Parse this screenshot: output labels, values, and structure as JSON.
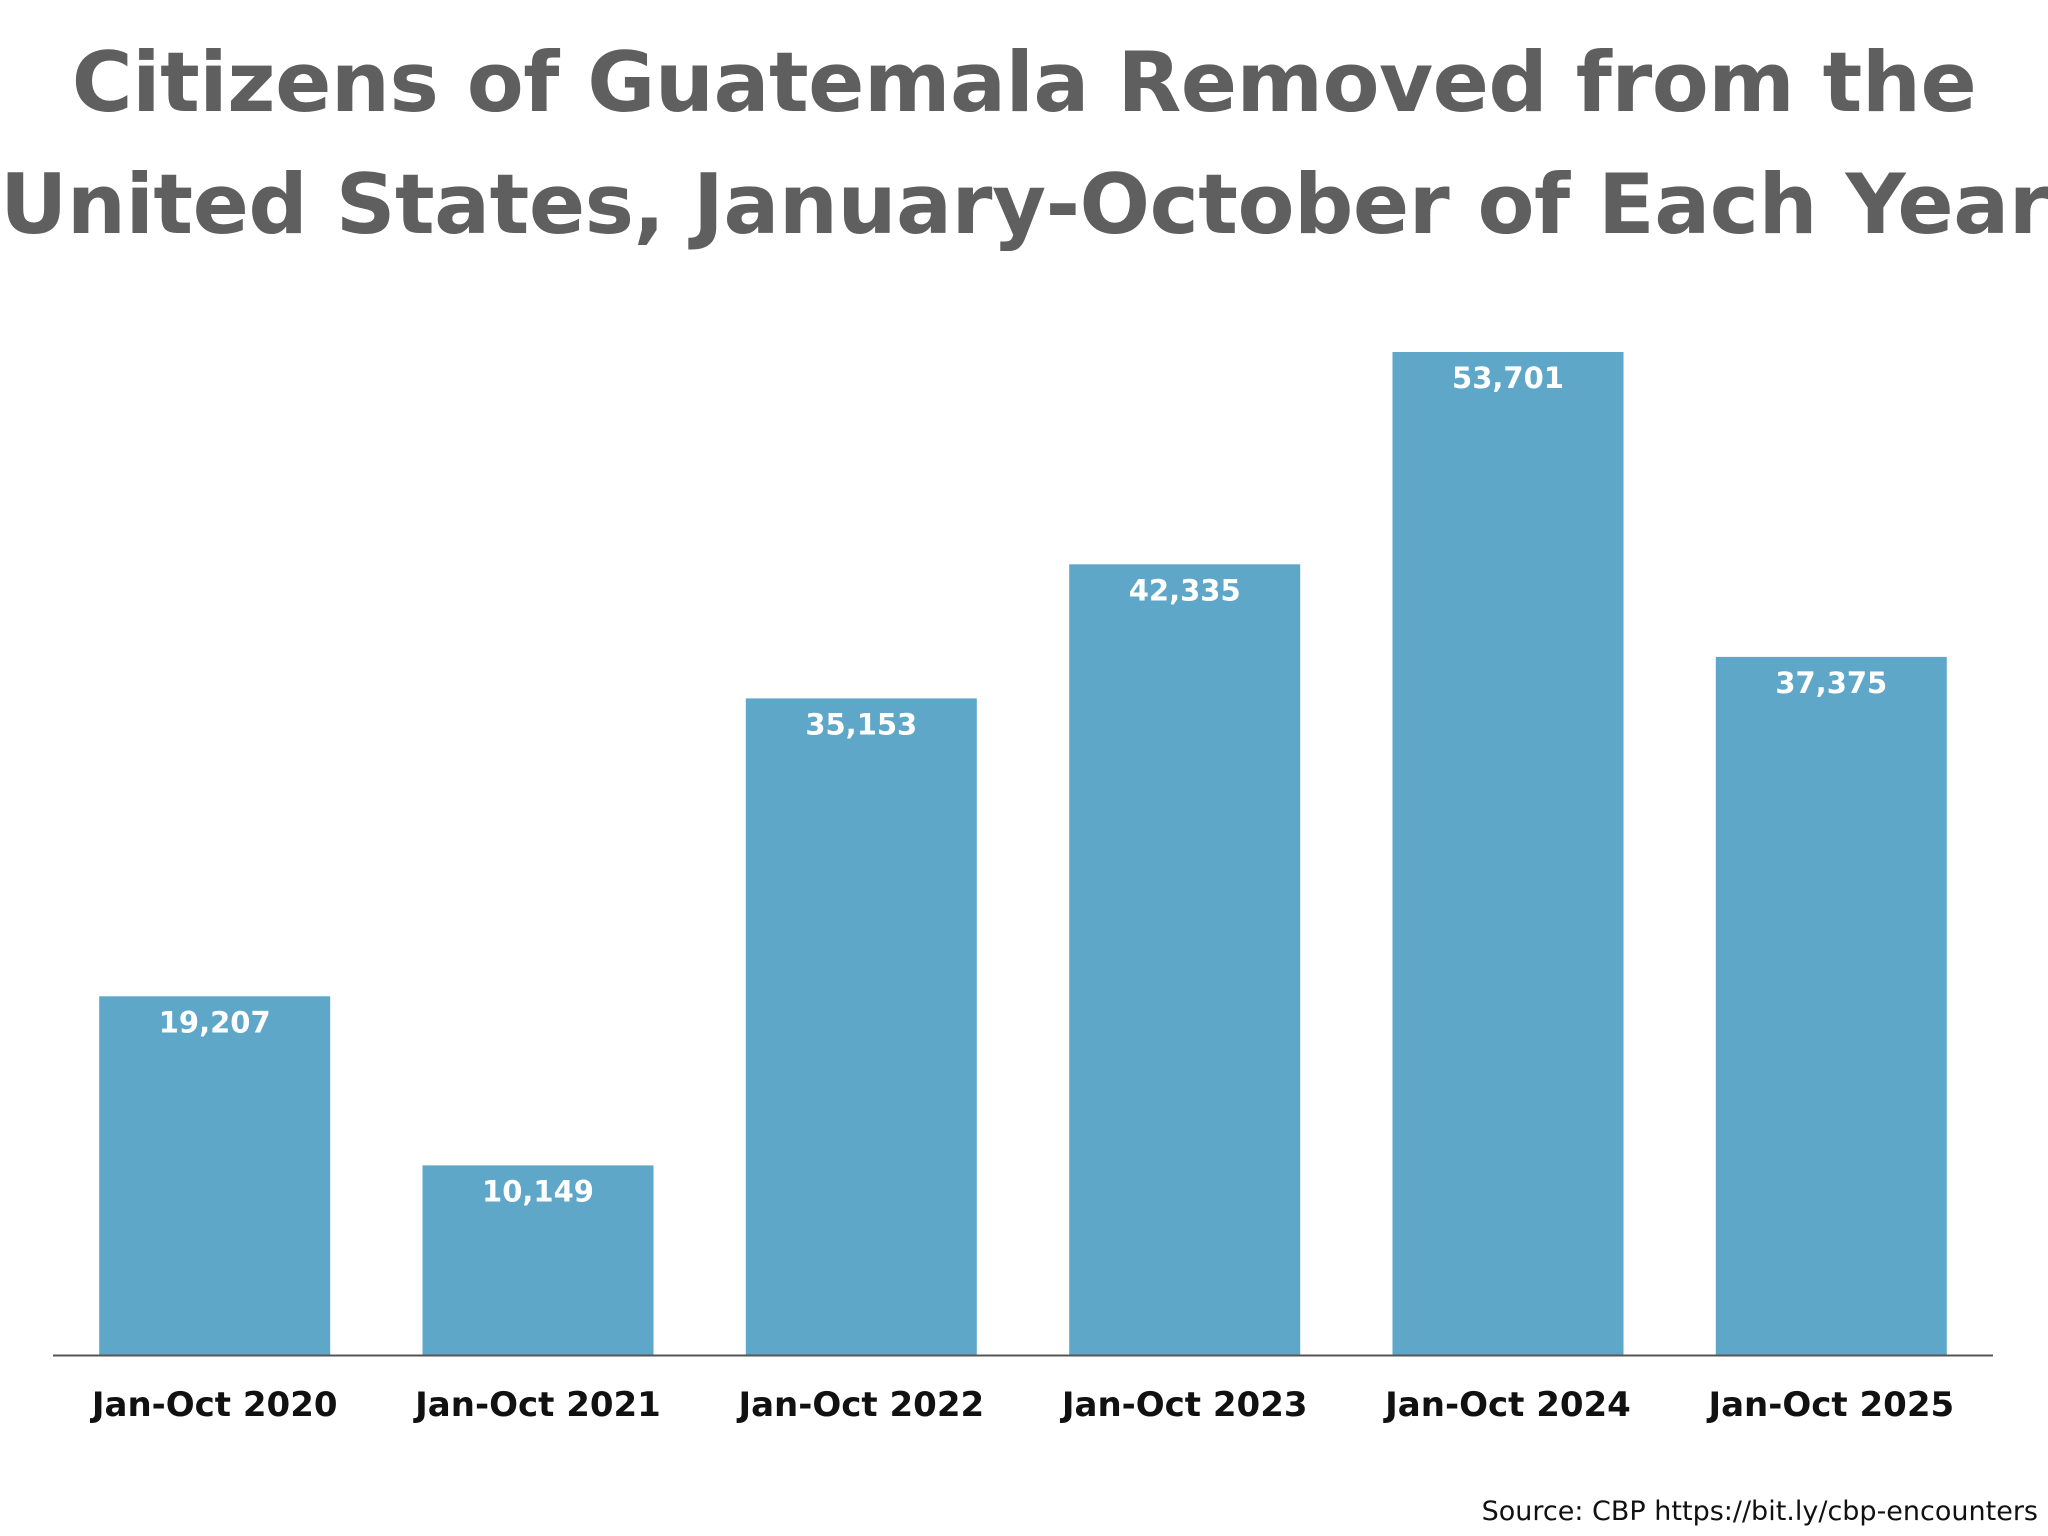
{
  "chart_data": {
    "type": "bar",
    "title_lines": [
      "Citizens of Guatemala Removed from the",
      "United States, January-October of Each Year"
    ],
    "categories": [
      "Jan-Oct 2020",
      "Jan-Oct 2021",
      "Jan-Oct 2022",
      "Jan-Oct 2023",
      "Jan-Oct 2024",
      "Jan-Oct 2025"
    ],
    "values": [
      19207,
      10149,
      35153,
      42335,
      53701,
      37375
    ],
    "value_labels": [
      "19,207",
      "10,149",
      "35,153",
      "42,335",
      "53,701",
      "37,375"
    ],
    "xlabel": "",
    "ylabel": "",
    "ylim": [
      0,
      60000
    ],
    "grid": false,
    "bar_color": "#5ea7c8",
    "axis_color": "#555555",
    "source": "Source: CBP https://bit.ly/cbp-encounters"
  }
}
